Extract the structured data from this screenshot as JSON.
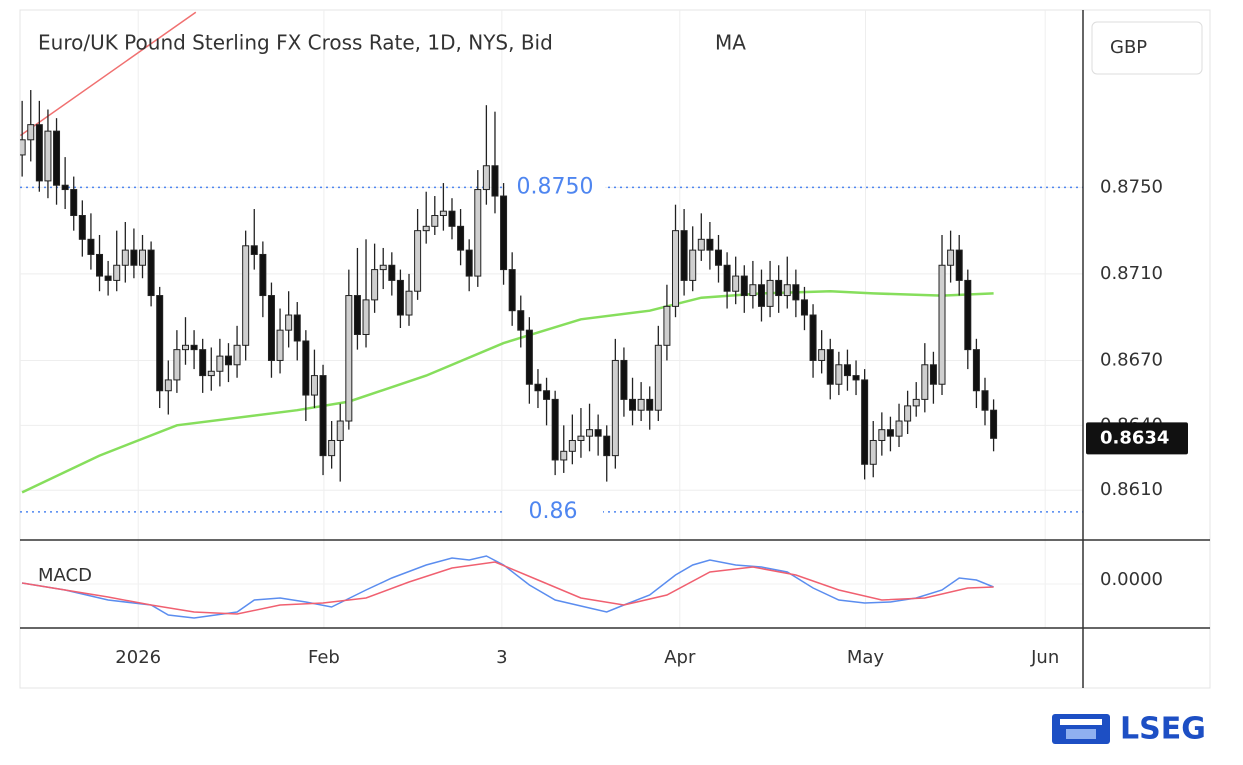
{
  "chart_data": {
    "type": "candlestick",
    "title": "Euro/UK Pound Sterling FX Cross Rate, 1D, NYS, Bid",
    "currency": "GBP",
    "up_color": "#cfcfcf",
    "down_color": "#111111",
    "ohlc": [
      [
        0.8765,
        0.879,
        0.8755,
        0.8772
      ],
      [
        0.8772,
        0.8795,
        0.8762,
        0.8779
      ],
      [
        0.8779,
        0.879,
        0.8748,
        0.8753
      ],
      [
        0.8753,
        0.8786,
        0.8745,
        0.8776
      ],
      [
        0.8776,
        0.8782,
        0.8742,
        0.8751
      ],
      [
        0.8751,
        0.8764,
        0.874,
        0.8749
      ],
      [
        0.8749,
        0.8755,
        0.873,
        0.8737
      ],
      [
        0.8737,
        0.8744,
        0.8718,
        0.8726
      ],
      [
        0.8726,
        0.8738,
        0.8712,
        0.8719
      ],
      [
        0.8719,
        0.8728,
        0.8702,
        0.8709
      ],
      [
        0.8709,
        0.8716,
        0.87,
        0.8707
      ],
      [
        0.8707,
        0.873,
        0.8702,
        0.8714
      ],
      [
        0.8714,
        0.8734,
        0.8706,
        0.8721
      ],
      [
        0.8721,
        0.8731,
        0.8708,
        0.8714
      ],
      [
        0.8714,
        0.8728,
        0.8708,
        0.8721
      ],
      [
        0.8721,
        0.8725,
        0.8695,
        0.87
      ],
      [
        0.87,
        0.8704,
        0.8648,
        0.8656
      ],
      [
        0.8656,
        0.867,
        0.8645,
        0.8661
      ],
      [
        0.8661,
        0.8684,
        0.8655,
        0.8675
      ],
      [
        0.8675,
        0.869,
        0.8668,
        0.8677
      ],
      [
        0.8677,
        0.8684,
        0.8666,
        0.8675
      ],
      [
        0.8675,
        0.868,
        0.8655,
        0.8663
      ],
      [
        0.8663,
        0.8676,
        0.8656,
        0.8665
      ],
      [
        0.8665,
        0.868,
        0.8658,
        0.8672
      ],
      [
        0.8672,
        0.8678,
        0.866,
        0.8668
      ],
      [
        0.8668,
        0.8686,
        0.8662,
        0.8677
      ],
      [
        0.8677,
        0.873,
        0.867,
        0.8723
      ],
      [
        0.8723,
        0.874,
        0.8712,
        0.8719
      ],
      [
        0.8719,
        0.8725,
        0.869,
        0.87
      ],
      [
        0.87,
        0.8706,
        0.8662,
        0.867
      ],
      [
        0.867,
        0.8694,
        0.8664,
        0.8684
      ],
      [
        0.8684,
        0.8702,
        0.8676,
        0.8691
      ],
      [
        0.8691,
        0.8697,
        0.867,
        0.8679
      ],
      [
        0.8679,
        0.8684,
        0.8642,
        0.8654
      ],
      [
        0.8654,
        0.8675,
        0.8648,
        0.8663
      ],
      [
        0.8663,
        0.8668,
        0.8617,
        0.8626
      ],
      [
        0.8626,
        0.8642,
        0.862,
        0.8633
      ],
      [
        0.8633,
        0.865,
        0.8614,
        0.8642
      ],
      [
        0.8642,
        0.8712,
        0.8638,
        0.87
      ],
      [
        0.87,
        0.8722,
        0.8675,
        0.8682
      ],
      [
        0.8682,
        0.8726,
        0.8676,
        0.8698
      ],
      [
        0.8698,
        0.8724,
        0.8692,
        0.8712
      ],
      [
        0.8712,
        0.8722,
        0.8703,
        0.8714
      ],
      [
        0.8714,
        0.872,
        0.87,
        0.8707
      ],
      [
        0.8707,
        0.8712,
        0.8685,
        0.8691
      ],
      [
        0.8691,
        0.871,
        0.8686,
        0.8702
      ],
      [
        0.8702,
        0.874,
        0.8698,
        0.873
      ],
      [
        0.873,
        0.8748,
        0.8724,
        0.8732
      ],
      [
        0.8732,
        0.8746,
        0.8728,
        0.8737
      ],
      [
        0.8737,
        0.8752,
        0.873,
        0.8739
      ],
      [
        0.8739,
        0.8745,
        0.8726,
        0.8732
      ],
      [
        0.8732,
        0.874,
        0.8714,
        0.8721
      ],
      [
        0.8721,
        0.8726,
        0.8702,
        0.8709
      ],
      [
        0.8709,
        0.8758,
        0.8704,
        0.8749
      ],
      [
        0.8749,
        0.8788,
        0.8742,
        0.876
      ],
      [
        0.876,
        0.8785,
        0.8738,
        0.8746
      ],
      [
        0.8746,
        0.8752,
        0.8705,
        0.8712
      ],
      [
        0.8712,
        0.872,
        0.8686,
        0.8693
      ],
      [
        0.8693,
        0.87,
        0.8676,
        0.8684
      ],
      [
        0.8684,
        0.869,
        0.865,
        0.8659
      ],
      [
        0.8659,
        0.8666,
        0.8648,
        0.8656
      ],
      [
        0.8656,
        0.8662,
        0.864,
        0.8652
      ],
      [
        0.8652,
        0.8656,
        0.8617,
        0.8624
      ],
      [
        0.8624,
        0.864,
        0.8618,
        0.8628
      ],
      [
        0.8628,
        0.8645,
        0.8622,
        0.8633
      ],
      [
        0.8633,
        0.8648,
        0.8625,
        0.8635
      ],
      [
        0.8635,
        0.865,
        0.8628,
        0.8638
      ],
      [
        0.8638,
        0.8645,
        0.8626,
        0.8635
      ],
      [
        0.8635,
        0.864,
        0.8614,
        0.8626
      ],
      [
        0.8626,
        0.868,
        0.862,
        0.867
      ],
      [
        0.867,
        0.8676,
        0.8644,
        0.8652
      ],
      [
        0.8652,
        0.8662,
        0.864,
        0.8647
      ],
      [
        0.8647,
        0.866,
        0.8642,
        0.8652
      ],
      [
        0.8652,
        0.8658,
        0.8638,
        0.8647
      ],
      [
        0.8647,
        0.8686,
        0.8642,
        0.8677
      ],
      [
        0.8677,
        0.8705,
        0.867,
        0.8695
      ],
      [
        0.8695,
        0.8742,
        0.869,
        0.873
      ],
      [
        0.873,
        0.874,
        0.87,
        0.8707
      ],
      [
        0.8707,
        0.8732,
        0.8702,
        0.8721
      ],
      [
        0.8721,
        0.8738,
        0.8716,
        0.8726
      ],
      [
        0.8726,
        0.8734,
        0.8712,
        0.8721
      ],
      [
        0.8721,
        0.8728,
        0.8706,
        0.8714
      ],
      [
        0.8714,
        0.872,
        0.8694,
        0.8702
      ],
      [
        0.8702,
        0.8718,
        0.8696,
        0.8709
      ],
      [
        0.8709,
        0.8714,
        0.8692,
        0.87
      ],
      [
        0.87,
        0.8716,
        0.8694,
        0.8705
      ],
      [
        0.8705,
        0.8712,
        0.8688,
        0.8695
      ],
      [
        0.8695,
        0.8716,
        0.869,
        0.8707
      ],
      [
        0.8707,
        0.8714,
        0.8692,
        0.87
      ],
      [
        0.87,
        0.8718,
        0.8694,
        0.8705
      ],
      [
        0.8705,
        0.8712,
        0.869,
        0.8698
      ],
      [
        0.8698,
        0.8704,
        0.8684,
        0.8691
      ],
      [
        0.8691,
        0.8696,
        0.8662,
        0.867
      ],
      [
        0.867,
        0.8684,
        0.8664,
        0.8675
      ],
      [
        0.8675,
        0.868,
        0.8652,
        0.8659
      ],
      [
        0.8659,
        0.8674,
        0.8654,
        0.8668
      ],
      [
        0.8668,
        0.8675,
        0.8656,
        0.8663
      ],
      [
        0.8663,
        0.867,
        0.8654,
        0.8661
      ],
      [
        0.8661,
        0.8666,
        0.8615,
        0.8622
      ],
      [
        0.8622,
        0.8642,
        0.8616,
        0.8633
      ],
      [
        0.8633,
        0.8646,
        0.8626,
        0.8638
      ],
      [
        0.8638,
        0.8644,
        0.8628,
        0.8635
      ],
      [
        0.8635,
        0.865,
        0.863,
        0.8642
      ],
      [
        0.8642,
        0.8656,
        0.8636,
        0.8649
      ],
      [
        0.8649,
        0.866,
        0.8644,
        0.8652
      ],
      [
        0.8652,
        0.8678,
        0.8646,
        0.8668
      ],
      [
        0.8668,
        0.8674,
        0.865,
        0.8659
      ],
      [
        0.8659,
        0.8728,
        0.8654,
        0.8714
      ],
      [
        0.8714,
        0.873,
        0.8706,
        0.8721
      ],
      [
        0.8721,
        0.8728,
        0.87,
        0.8707
      ],
      [
        0.8707,
        0.8712,
        0.8666,
        0.8675
      ],
      [
        0.8675,
        0.868,
        0.8648,
        0.8656
      ],
      [
        0.8656,
        0.8662,
        0.864,
        0.8647
      ],
      [
        0.8647,
        0.8652,
        0.8628,
        0.8634
      ]
    ],
    "xlim": [
      -0.25,
      123.4
    ],
    "xticks": [
      {
        "value": 13.5,
        "label": "2026"
      },
      {
        "value": 35.1,
        "label": "Feb"
      },
      {
        "value": 55.8,
        "label": "3"
      },
      {
        "value": 76.5,
        "label": "Apr"
      },
      {
        "value": 98.1,
        "label": "May"
      },
      {
        "value": 119,
        "label": "Jun"
      }
    ],
    "ylim": [
      0.8587,
      0.8832
    ],
    "yticks": [
      {
        "value": 0.875,
        "label": "0.8750"
      },
      {
        "value": 0.871,
        "label": "0.8710"
      },
      {
        "value": 0.867,
        "label": "0.8670"
      },
      {
        "value": 0.864,
        "label": "0.8640"
      },
      {
        "value": 0.861,
        "label": "0.8610"
      }
    ],
    "grid": true,
    "series": [
      {
        "name": "MA",
        "color": "#86de5c",
        "x": [
          0,
          9,
          18,
          32,
          38,
          47,
          56,
          65,
          73,
          79,
          86,
          94,
          99,
          107,
          113
        ],
        "values": [
          0.8609,
          0.8626,
          0.864,
          0.8647,
          0.8651,
          0.8663,
          0.8678,
          0.8689,
          0.8693,
          0.8699,
          0.8701,
          0.8702,
          0.8701,
          0.87,
          0.8701
        ]
      }
    ],
    "trendline": {
      "color": "#f07070",
      "x": [
        -0.2,
        20.2
      ],
      "values": [
        0.8774,
        0.8831
      ]
    },
    "levels": [
      {
        "value": 0.875,
        "label": "0.8750"
      },
      {
        "value": 0.86,
        "label": "0.86"
      }
    ],
    "level_color": "#4f86f0",
    "last_price": 0.8634,
    "macd": {
      "label": "MACD",
      "ylim": [
        -0.00176,
        0.00176
      ],
      "yticks": [
        {
          "value": 0,
          "label": "0.0000"
        }
      ],
      "macd": {
        "color": "#5b8def",
        "x": [
          0,
          5,
          10,
          15,
          17,
          20,
          25,
          27,
          30,
          33,
          36,
          40,
          43,
          47,
          50,
          52,
          54,
          56,
          59,
          62,
          66,
          68,
          70,
          73,
          76,
          78,
          80,
          83,
          86,
          89,
          92,
          95,
          98,
          101,
          104,
          107,
          109,
          111,
          113
        ],
        "values": [
          4e-05,
          -0.00024,
          -0.00064,
          -0.00084,
          -0.00124,
          -0.00136,
          -0.00112,
          -0.00064,
          -0.00056,
          -0.00072,
          -0.00092,
          -0.00024,
          0.00024,
          0.00076,
          0.00104,
          0.00096,
          0.00112,
          0.00076,
          -4e-05,
          -0.00064,
          -0.00096,
          -0.00112,
          -0.00084,
          -0.00044,
          0.00036,
          0.00076,
          0.00096,
          0.00076,
          0.00068,
          0.00048,
          -0.00016,
          -0.00064,
          -0.00076,
          -0.00072,
          -0.00056,
          -0.00024,
          0.00024,
          0.00016,
          -0.00012
        ]
      },
      "signal": {
        "color": "#f06070",
        "x": [
          0,
          5,
          10,
          15,
          20,
          25,
          30,
          35,
          40,
          45,
          50,
          55,
          60,
          65,
          70,
          75,
          80,
          85,
          90,
          95,
          100,
          105,
          110,
          113
        ],
        "values": [
          4e-05,
          -0.00024,
          -0.00052,
          -0.00084,
          -0.00112,
          -0.0012,
          -0.00084,
          -0.00076,
          -0.00056,
          8e-05,
          0.00064,
          0.00088,
          0.00016,
          -0.00056,
          -0.00084,
          -0.00044,
          0.00048,
          0.00068,
          0.00036,
          -0.00024,
          -0.00064,
          -0.00056,
          -0.00016,
          -0.00012
        ]
      }
    }
  },
  "footer": {
    "brand": "LSEG"
  }
}
